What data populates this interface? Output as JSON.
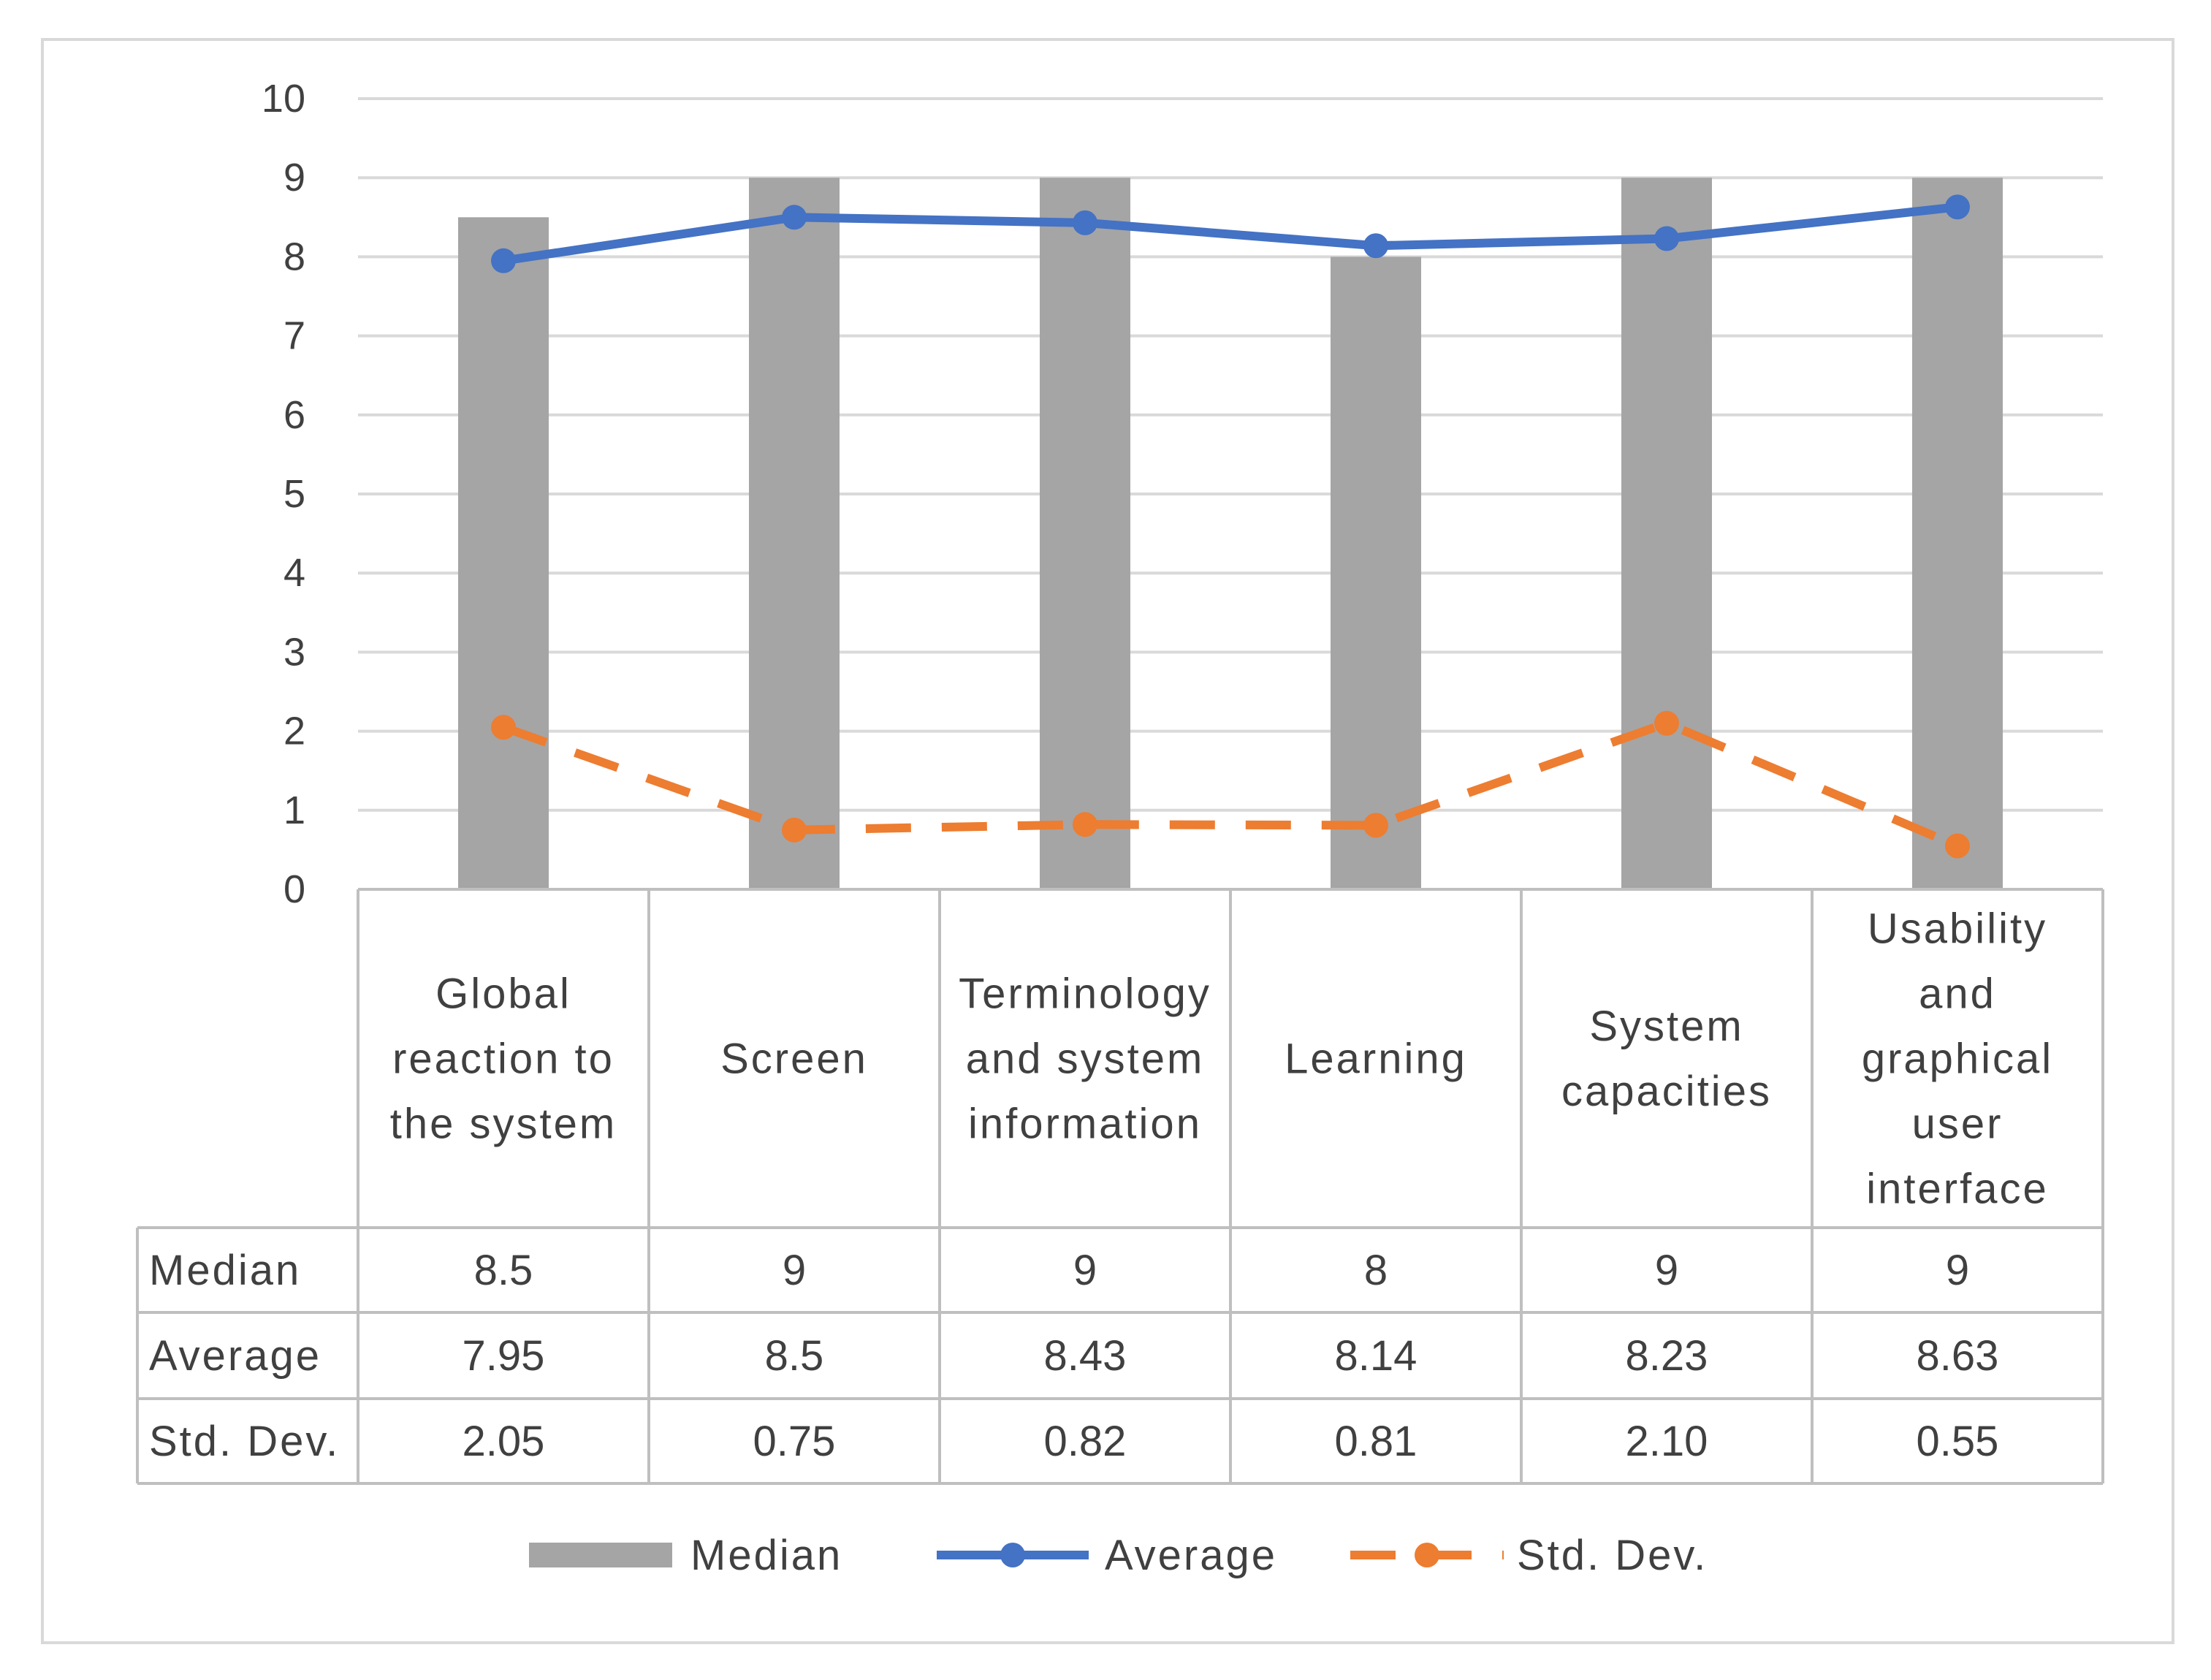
{
  "chart_data": {
    "type": "bar",
    "title": "",
    "xlabel": "",
    "ylabel": "",
    "ylim": [
      0,
      10
    ],
    "yticks": [
      0,
      1,
      2,
      3,
      4,
      5,
      6,
      7,
      8,
      9,
      10
    ],
    "grid": true,
    "legend_position": "bottom",
    "categories": [
      "Global reaction to the system",
      "Screen",
      "Terminology and system information",
      "Learning",
      "System capacities",
      "Usability and graphical user interface"
    ],
    "category_lines": [
      [
        "Global",
        "reaction to",
        "the system"
      ],
      [
        "Screen"
      ],
      [
        "Terminology",
        "and system",
        "information"
      ],
      [
        "Learning"
      ],
      [
        "System",
        "capacities"
      ],
      [
        "Usability",
        "and",
        "graphical",
        "user",
        "interface"
      ]
    ],
    "series": [
      {
        "name": "Median",
        "kind": "bar",
        "color": "#a5a5a5",
        "values": [
          8.5,
          9,
          9,
          8,
          9,
          9
        ],
        "table_values": [
          "8.5",
          "9",
          "9",
          "8",
          "9",
          "9"
        ]
      },
      {
        "name": "Average",
        "kind": "line",
        "style": "solid",
        "marker": "circle",
        "color": "#4472c4",
        "values": [
          7.95,
          8.5,
          8.43,
          8.14,
          8.23,
          8.63
        ],
        "table_values": [
          "7.95",
          "8.5",
          "8.43",
          "8.14",
          "8.23",
          "8.63"
        ]
      },
      {
        "name": "Std. Dev.",
        "kind": "line",
        "style": "dashed",
        "marker": "circle",
        "color": "#ed7d31",
        "values": [
          2.05,
          0.75,
          0.82,
          0.81,
          2.1,
          0.55
        ],
        "table_values": [
          "2.05",
          "0.75",
          "0.82",
          "0.81",
          "2.10",
          "0.55"
        ]
      }
    ]
  }
}
